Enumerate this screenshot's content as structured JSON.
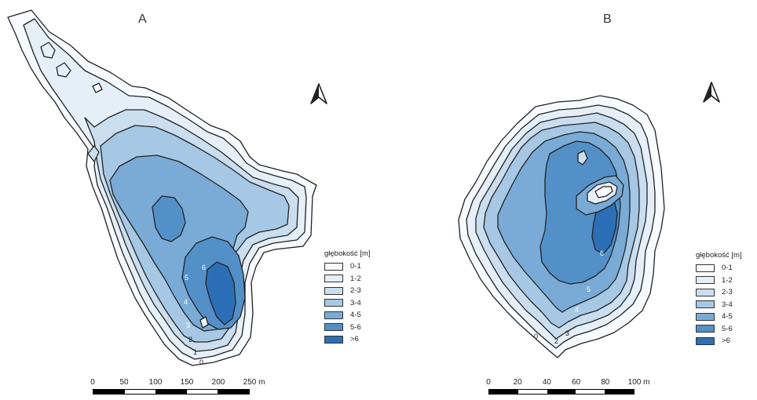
{
  "colors": {
    "d0": "#f7fafe",
    "d1": "#e6eff8",
    "d2": "#cadeef",
    "d3": "#a6c8e4",
    "d4": "#79abd6",
    "d5": "#5390c8",
    "d6": "#2d6fb6",
    "contour": "#222222"
  },
  "legend": {
    "title": "głębokość [m]",
    "items": [
      {
        "label": "0-1",
        "color": "#f7fafe"
      },
      {
        "label": "1-2",
        "color": "#e6eff8"
      },
      {
        "label": "2-3",
        "color": "#cadeef"
      },
      {
        "label": "3-4",
        "color": "#a6c8e4"
      },
      {
        "label": "4-5",
        "color": "#79abd6"
      },
      {
        "label": "5-6",
        "color": "#5390c8"
      },
      {
        "label": ">6",
        "color": "#2d6fb6"
      }
    ]
  },
  "north_icon": "north-arrow-icon",
  "panels": [
    {
      "label": "A",
      "depth_labels": [
        "0",
        "1",
        "2",
        "3",
        "4",
        "5",
        "6"
      ],
      "scale": {
        "ticks": [
          "0",
          "50",
          "100",
          "150",
          "200",
          "250 m"
        ]
      }
    },
    {
      "label": "B",
      "depth_labels": [
        "0",
        "2",
        "3",
        "4",
        "5",
        "6"
      ],
      "scale": {
        "ticks": [
          "0",
          "20",
          "40",
          "60",
          "80",
          "100 m"
        ]
      }
    }
  ]
}
